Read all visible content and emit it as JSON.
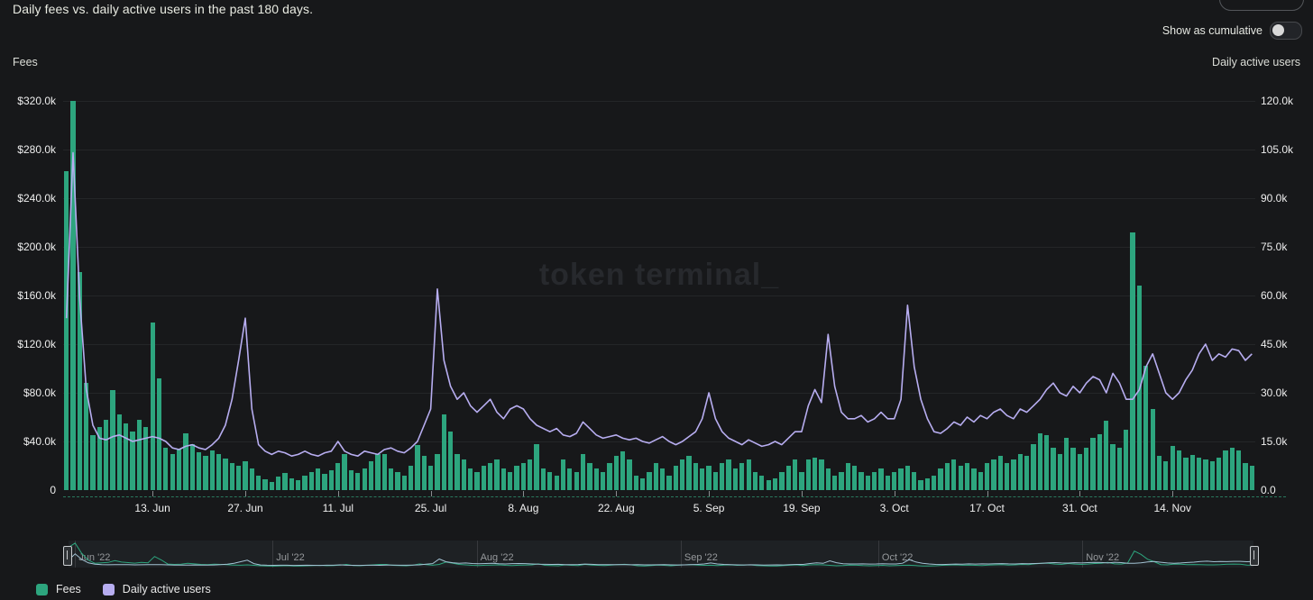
{
  "header": {
    "title": "Daily fees vs. daily active users in the past 180 days.",
    "cumulative_toggle": {
      "label": "Show as cumulative",
      "state": "off"
    }
  },
  "axes": {
    "left_title": "Fees",
    "right_title": "Daily active users",
    "left_ticks": [
      "$320.0k",
      "$280.0k",
      "$240.0k",
      "$200.0k",
      "$160.0k",
      "$120.0k",
      "$80.0k",
      "$40.0k",
      "0"
    ],
    "right_ticks": [
      "120.0k",
      "105.0k",
      "90.0k",
      "75.0k",
      "60.0k",
      "45.0k",
      "30.0k",
      "15.0k",
      "0.0"
    ],
    "x_ticks": [
      {
        "label": "13. Jun",
        "day": 13
      },
      {
        "label": "27. Jun",
        "day": 27
      },
      {
        "label": "11. Jul",
        "day": 41
      },
      {
        "label": "25. Jul",
        "day": 55
      },
      {
        "label": "8. Aug",
        "day": 69
      },
      {
        "label": "22. Aug",
        "day": 83
      },
      {
        "label": "5. Sep",
        "day": 97
      },
      {
        "label": "19. Sep",
        "day": 111
      },
      {
        "label": "3. Oct",
        "day": 125
      },
      {
        "label": "17. Oct",
        "day": 139
      },
      {
        "label": "31. Oct",
        "day": 153
      },
      {
        "label": "14. Nov",
        "day": 167
      }
    ]
  },
  "watermark": "token terminal_",
  "navigator": {
    "months": [
      {
        "label": "Jun '22",
        "day": 1
      },
      {
        "label": "Jul '22",
        "day": 31
      },
      {
        "label": "Aug '22",
        "day": 62
      },
      {
        "label": "Sep '22",
        "day": 93
      },
      {
        "label": "Oct '22",
        "day": 123
      },
      {
        "label": "Nov '22",
        "day": 154
      }
    ]
  },
  "legend": [
    {
      "label": "Fees",
      "color": "#2da57e"
    },
    {
      "label": "Daily active users",
      "color": "#b7adf0"
    }
  ],
  "colors": {
    "background": "#17181a",
    "fees_bar": "#2da57e",
    "users_line": "#b7adf0",
    "nav_fees_line": "#2da57e",
    "nav_users_line": "#a3c3d4",
    "gridline": "#242628",
    "dashed_axis": "#2e8a6a"
  },
  "chart_data": {
    "type": "combo",
    "x_start_date": "2022-05-31",
    "x_end_date": "2022-11-26",
    "x_points": 180,
    "title": "Daily fees vs. daily active users in the past 180 days.",
    "y_left": {
      "label": "Fees",
      "unit": "USD thousands",
      "min": 0,
      "max": 320
    },
    "y_right": {
      "label": "Daily active users",
      "unit": "thousands",
      "min": 0,
      "max": 120
    },
    "grid": "horizontal-only",
    "legend_position": "bottom-left",
    "series": [
      {
        "name": "Fees",
        "type": "bar",
        "axis": "left",
        "unit": "USD thousands",
        "values": [
          262,
          320,
          179,
          88,
          45,
          52,
          58,
          82,
          62,
          55,
          48,
          58,
          52,
          138,
          92,
          35,
          30,
          34,
          47,
          38,
          31,
          28,
          33,
          30,
          26,
          22,
          20,
          24,
          18,
          12,
          9,
          7,
          11,
          14,
          10,
          8,
          12,
          15,
          18,
          13,
          16,
          22,
          30,
          16,
          14,
          18,
          24,
          30,
          30,
          18,
          15,
          12,
          20,
          37,
          28,
          20,
          30,
          62,
          48,
          30,
          25,
          18,
          15,
          20,
          22,
          25,
          18,
          15,
          20,
          22,
          25,
          38,
          18,
          15,
          12,
          25,
          18,
          15,
          30,
          22,
          18,
          15,
          22,
          28,
          32,
          25,
          12,
          10,
          15,
          22,
          18,
          12,
          20,
          25,
          28,
          22,
          18,
          20,
          15,
          22,
          25,
          18,
          22,
          25,
          15,
          12,
          8,
          10,
          15,
          20,
          25,
          15,
          25,
          27,
          25,
          18,
          12,
          15,
          22,
          20,
          15,
          12,
          15,
          18,
          12,
          15,
          18,
          20,
          15,
          8,
          10,
          12,
          18,
          22,
          25,
          20,
          22,
          18,
          15,
          22,
          25,
          28,
          22,
          25,
          30,
          28,
          38,
          47,
          45,
          35,
          30,
          43,
          35,
          30,
          35,
          43,
          46,
          57,
          38,
          35,
          50,
          212,
          168,
          102,
          67,
          28,
          24,
          36,
          33,
          27,
          29,
          27,
          25,
          24,
          27,
          33,
          35,
          33,
          22,
          20
        ]
      },
      {
        "name": "Daily active users",
        "type": "line",
        "axis": "right",
        "unit": "thousands",
        "values": [
          53,
          104,
          59,
          31,
          20,
          16,
          15.5,
          16.5,
          17,
          16,
          15,
          15.5,
          16,
          16.5,
          16,
          15,
          13,
          12.5,
          13.5,
          14,
          13,
          12.5,
          14,
          16,
          20,
          28,
          40,
          53,
          25,
          14,
          12,
          11,
          12,
          11.5,
          10.5,
          11,
          12,
          11,
          10.5,
          11.5,
          12,
          15,
          12,
          11,
          10.5,
          12,
          11.5,
          11,
          12.5,
          13,
          12,
          11.5,
          13,
          15,
          20,
          25,
          62,
          40,
          32,
          28,
          30,
          26,
          24,
          26,
          28,
          24,
          22,
          25,
          26,
          25,
          22,
          20,
          19,
          18,
          19,
          17,
          16.5,
          17.5,
          21,
          19,
          17,
          16,
          16.5,
          17,
          16,
          15.5,
          16,
          15,
          14.5,
          15.5,
          16.5,
          15,
          14,
          15,
          16.5,
          18,
          22,
          30,
          22,
          18,
          16,
          15,
          14,
          15.5,
          14.5,
          13.5,
          14,
          15,
          14,
          16,
          18,
          18,
          26,
          31,
          27,
          48,
          32,
          24,
          22,
          22,
          23,
          21,
          22,
          24,
          22,
          22,
          28,
          57,
          38,
          28,
          22,
          18,
          17.5,
          19,
          21,
          20,
          22.5,
          21,
          23,
          22,
          24,
          25,
          23,
          22,
          25,
          24,
          26,
          28,
          31,
          33,
          30,
          29,
          32,
          30,
          33,
          35,
          34,
          30,
          36,
          33,
          28,
          28,
          31,
          38,
          42,
          36,
          30,
          28,
          30,
          34,
          37,
          42,
          45,
          40,
          42,
          41,
          43.5,
          43,
          40,
          42
        ]
      }
    ]
  }
}
